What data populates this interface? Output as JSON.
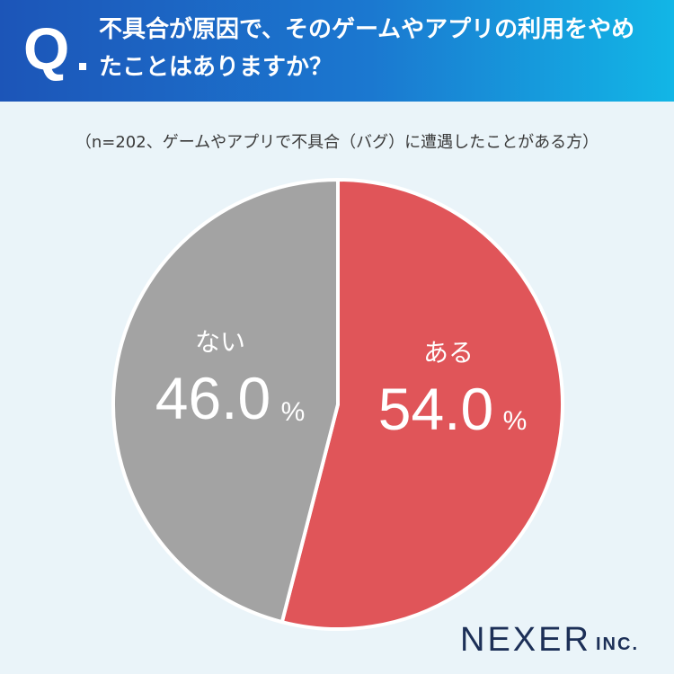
{
  "header": {
    "q_mark": "Q",
    "question": "不具合が原因で、そのゲームやアプリの利用をやめたことはありますか？"
  },
  "subtitle": "（n=202、ゲームやアプリで不具合（バグ）に遭遇したことがある方）",
  "chart_data": {
    "type": "pie",
    "title": "",
    "slices": [
      {
        "label": "ある",
        "value": 54.0,
        "display": "54.0",
        "color": "#e05559"
      },
      {
        "label": "ない",
        "value": 46.0,
        "display": "46.0",
        "color": "#a3a3a3"
      }
    ],
    "unit": "%",
    "start": "12 o'clock",
    "direction": "clockwise"
  },
  "brand": {
    "name": "NEXER",
    "suffix": "INC."
  }
}
